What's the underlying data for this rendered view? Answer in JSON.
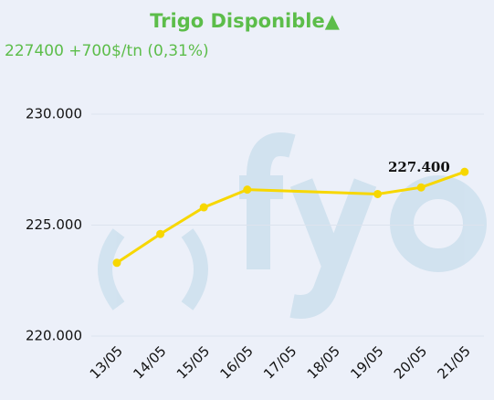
{
  "chart_data": {
    "type": "line",
    "title": "Trigo Disponible▲",
    "subtitle": "227400 +700$/tn (0,31%)",
    "categories": [
      "13/05",
      "14/05",
      "15/05",
      "16/05",
      "17/05",
      "18/05",
      "19/05",
      "20/05",
      "21/05"
    ],
    "values": [
      223300,
      224600,
      225800,
      226600,
      null,
      null,
      226400,
      226700,
      227400
    ],
    "value_labels": [
      null,
      null,
      null,
      null,
      null,
      null,
      null,
      null,
      "227.400"
    ],
    "color": "#f7d700",
    "span_gaps": true,
    "ylim": [
      220000,
      231000
    ],
    "yticks": [
      {
        "value": 220000,
        "label": "220.000"
      },
      {
        "value": 225000,
        "label": "225.000"
      },
      {
        "value": 230000,
        "label": "230.000"
      }
    ],
    "grid": true
  }
}
